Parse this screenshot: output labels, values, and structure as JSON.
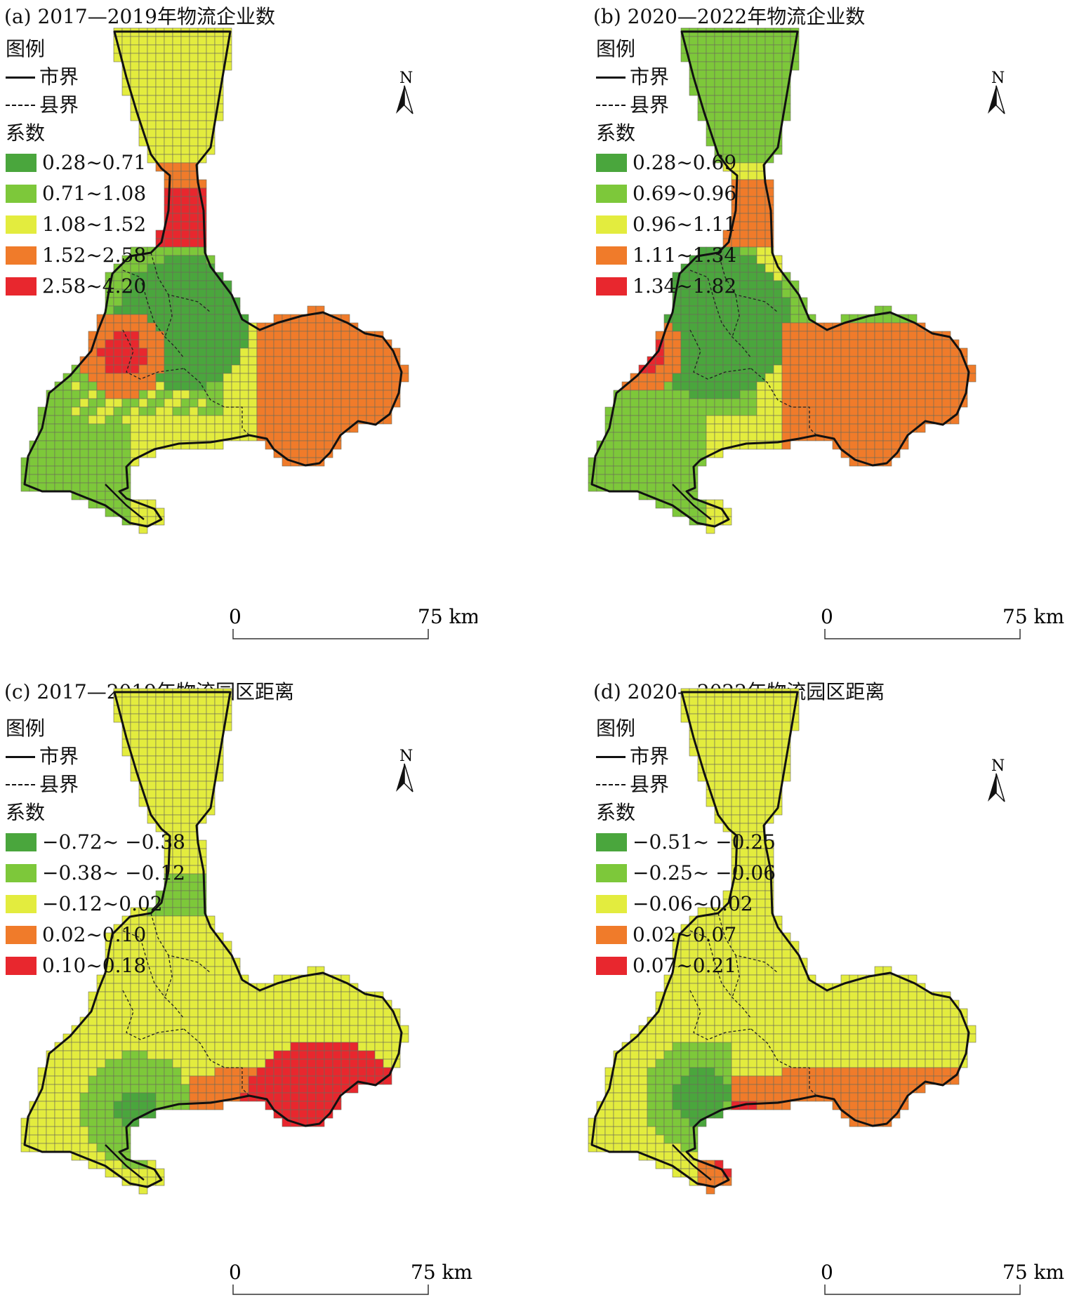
{
  "legend_labels": {
    "title": "图例",
    "city": "市界",
    "county": "县界",
    "coef": "系数"
  },
  "scale_labels": {
    "zero": "0",
    "end": "75 km"
  },
  "north_label": "N",
  "colors": {
    "c1": "#4aa63d",
    "c2": "#7dc83a",
    "c3": "#e3ec3e",
    "c4": "#f07b2a",
    "c5": "#e8272e"
  },
  "panels": [
    {
      "title": "(a) 2017—2019年物流企业数",
      "classes": [
        "0.28~0.71",
        "0.71~1.08",
        "1.08~1.52",
        "1.52~2.58",
        "2.58~4.20"
      ]
    },
    {
      "title": "(b) 2020—2022年物流企业数",
      "classes": [
        "0.28~0.69",
        "0.69~0.96",
        "0.96~1.11",
        "1.11~1.34",
        "1.34~1.82"
      ]
    },
    {
      "title": "(c) 2017—2019年物流园区距离",
      "classes": [
        "−0.72~ −0.38",
        "−0.38~ −0.12",
        "−0.12~0.02",
        "0.02~0.10",
        "0.10~0.18"
      ]
    },
    {
      "title": "(d) 2020—2022年物流园区距离",
      "classes": [
        "−0.51~ −0.25",
        "−0.25~ −0.06",
        "−0.06~0.02",
        "0.02~0.07",
        "0.07~0.21"
      ]
    }
  ]
}
